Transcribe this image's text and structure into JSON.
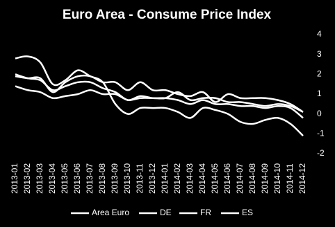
{
  "chart_data": {
    "type": "line",
    "title": "Euro Area - Consume Price Index",
    "categories": [
      "2013-01",
      "2013-02",
      "2013-03",
      "2013-04",
      "2013-05",
      "2013-06",
      "2013-07",
      "2013-08",
      "2013-09",
      "2013-10",
      "2013-11",
      "2013-12",
      "2014-01",
      "2014-02",
      "2014-03",
      "2014-04",
      "2014-05",
      "2014-06",
      "2014-07",
      "2014-08",
      "2014-09",
      "2014-10",
      "2014-11",
      "2014-12"
    ],
    "series": [
      {
        "name": "Area Euro",
        "color": "#ffffff",
        "values": [
          2.0,
          1.8,
          1.7,
          1.2,
          1.4,
          1.6,
          1.6,
          1.3,
          1.1,
          0.7,
          0.9,
          0.8,
          0.8,
          0.7,
          0.5,
          0.7,
          0.5,
          0.5,
          0.4,
          0.4,
          0.3,
          0.4,
          0.3,
          -0.2
        ]
      },
      {
        "name": "DE",
        "color": "#ffffff",
        "values": [
          1.9,
          1.8,
          1.8,
          1.1,
          1.6,
          1.9,
          1.9,
          1.6,
          1.6,
          1.2,
          1.6,
          1.2,
          1.2,
          1.0,
          0.9,
          1.1,
          0.6,
          1.0,
          0.8,
          0.8,
          0.8,
          0.7,
          0.5,
          0.1
        ]
      },
      {
        "name": "FR",
        "color": "#ffffff",
        "values": [
          1.4,
          1.2,
          1.1,
          0.8,
          0.9,
          1.0,
          1.2,
          1.0,
          1.0,
          0.7,
          0.8,
          0.8,
          0.8,
          1.1,
          0.7,
          0.8,
          0.8,
          0.6,
          0.6,
          0.5,
          0.4,
          0.5,
          0.4,
          0.1
        ]
      },
      {
        "name": "ES",
        "color": "#ffffff",
        "values": [
          2.8,
          2.9,
          2.6,
          1.5,
          1.7,
          2.2,
          1.9,
          1.6,
          0.5,
          0.0,
          0.3,
          0.3,
          0.3,
          0.1,
          -0.2,
          0.3,
          0.2,
          0.0,
          -0.4,
          -0.5,
          -0.3,
          -0.2,
          -0.5,
          -1.1
        ]
      }
    ],
    "ylim": [
      -2,
      4
    ],
    "yticks": [
      -2,
      -1,
      0,
      1,
      2,
      3,
      4
    ],
    "grid": false,
    "y_axis_side": "right",
    "legend": "bottom"
  }
}
